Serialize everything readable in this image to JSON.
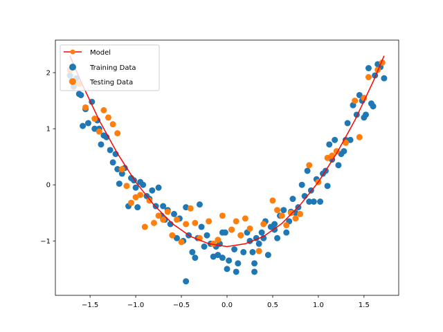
{
  "chart_data": {
    "type": "scatter",
    "xlim": [
      -1.88,
      1.88
    ],
    "ylim": [
      -1.97,
      2.58
    ],
    "x_ticks": [
      -1.5,
      -1.0,
      -0.5,
      0.0,
      0.5,
      1.0,
      1.5
    ],
    "x_tick_labels": [
      "−1.5",
      "−1.0",
      "−0.5",
      "0.0",
      "0.5",
      "1.0",
      "1.5"
    ],
    "y_ticks": [
      -1,
      0,
      1,
      2
    ],
    "y_tick_labels": [
      "−1",
      "0",
      "1",
      "2"
    ],
    "grid": false,
    "legend_position": "upper-left",
    "series": [
      {
        "name": "Model",
        "kind": "line",
        "color": "#ff0000",
        "formula": "y = 1.15 * x^2 - 1.1",
        "x": [
          -1.72,
          -1.6,
          -1.4,
          -1.2,
          -1.0,
          -0.8,
          -0.6,
          -0.4,
          -0.2,
          0.0,
          0.2,
          0.4,
          0.6,
          0.8,
          1.0,
          1.2,
          1.4,
          1.6,
          1.72
        ],
        "y": [
          2.3,
          1.84,
          1.15,
          0.56,
          0.05,
          -0.36,
          -0.69,
          -0.92,
          -1.05,
          -1.1,
          -1.05,
          -0.92,
          -0.69,
          -0.36,
          0.05,
          0.56,
          1.15,
          1.84,
          2.3
        ]
      },
      {
        "name": "Training Data",
        "kind": "scatter",
        "color": "#1f77b4",
        "x": [
          -1.72,
          -1.68,
          -1.65,
          -1.62,
          -1.58,
          -1.55,
          -1.52,
          -1.48,
          -1.45,
          -1.42,
          -1.38,
          -1.35,
          -1.32,
          -1.28,
          -1.25,
          -1.22,
          -1.18,
          -1.15,
          -1.12,
          -1.08,
          -1.05,
          -1.02,
          -0.98,
          -0.95,
          -0.92,
          -0.88,
          -0.85,
          -0.82,
          -0.78,
          -0.75,
          -0.72,
          -0.68,
          -0.65,
          -0.62,
          -0.58,
          -0.55,
          -0.52,
          -0.48,
          -0.45,
          -0.42,
          -0.38,
          -0.35,
          -0.32,
          -0.28,
          -0.25,
          -0.22,
          -0.18,
          -0.15,
          -0.12,
          -0.08,
          -0.05,
          -0.02,
          0.02,
          0.05,
          0.08,
          0.12,
          0.15,
          0.18,
          0.22,
          0.25,
          0.28,
          0.32,
          0.35,
          0.38,
          0.42,
          0.45,
          0.48,
          0.52,
          0.55,
          0.58,
          0.62,
          0.65,
          0.68,
          0.72,
          0.75,
          0.78,
          0.82,
          0.85,
          0.88,
          0.92,
          0.95,
          0.98,
          1.02,
          1.05,
          1.08,
          1.12,
          1.15,
          1.18,
          1.22,
          1.25,
          1.28,
          1.32,
          1.35,
          1.38,
          1.42,
          1.45,
          1.48,
          1.52,
          1.55,
          1.58,
          1.62,
          1.65,
          1.68,
          1.72,
          -1.6,
          -1.4,
          -1.2,
          -1.0,
          -0.7,
          -0.45,
          -0.3,
          -0.1,
          0.0,
          0.1,
          0.3,
          0.4,
          0.7,
          0.9,
          1.1,
          1.3,
          1.5,
          1.6
        ],
        "y": [
          1.95,
          1.75,
          1.9,
          1.62,
          1.05,
          1.35,
          1.1,
          1.48,
          1.0,
          1.15,
          0.72,
          0.88,
          0.85,
          0.62,
          0.4,
          0.55,
          0.02,
          0.2,
          0.3,
          -0.38,
          0.12,
          0.08,
          -0.4,
          0.05,
          0.0,
          -0.2,
          -0.25,
          -0.1,
          -0.38,
          -0.05,
          -0.55,
          -0.62,
          -0.45,
          -0.7,
          -0.52,
          -0.95,
          -0.6,
          -1.0,
          -0.4,
          -0.9,
          -1.2,
          -1.3,
          -0.95,
          -0.75,
          -1.1,
          -0.9,
          -1.05,
          -1.28,
          -1.1,
          -1.05,
          -1.3,
          -0.85,
          -1.35,
          -0.8,
          -1.15,
          -1.4,
          -0.9,
          -1.2,
          -0.85,
          -1.0,
          -1.2,
          -0.95,
          -1.05,
          -0.85,
          -0.65,
          -1.25,
          -0.75,
          -0.8,
          -0.95,
          -0.55,
          -0.45,
          -0.85,
          -0.65,
          -0.25,
          -0.5,
          -0.4,
          0.0,
          -0.2,
          0.25,
          -0.1,
          -0.3,
          0.1,
          -0.3,
          0.2,
          0.25,
          0.72,
          0.45,
          0.8,
          0.35,
          0.55,
          0.6,
          1.1,
          0.8,
          1.42,
          1.25,
          1.6,
          1.5,
          1.25,
          2.08,
          1.45,
          1.95,
          2.15,
          2.1,
          1.9,
          1.6,
          1.0,
          0.28,
          -0.05,
          -0.38,
          -1.72,
          -0.35,
          -1.25,
          -1.5,
          -1.55,
          -1.4,
          -0.95,
          -0.48,
          -0.3,
          -0.02,
          0.8,
          1.2,
          1.4
        ],
        "extra_points": [
          [
            -1.7,
            1.85
          ],
          [
            0.3,
            -1.55
          ],
          [
            0.52,
            -0.7
          ],
          [
            -0.05,
            -0.85
          ]
        ]
      },
      {
        "name": "Testing Data",
        "kind": "scatter",
        "color": "#ff7f0e",
        "x": [
          -1.72,
          -1.62,
          -1.55,
          -1.45,
          -1.4,
          -1.35,
          -1.3,
          -1.25,
          -1.2,
          -1.15,
          -1.1,
          -1.05,
          -1.0,
          -0.95,
          -0.9,
          -0.85,
          -0.8,
          -0.75,
          -0.7,
          -0.65,
          -0.6,
          -0.55,
          -0.5,
          -0.45,
          -0.4,
          -0.35,
          -0.3,
          -0.2,
          -0.15,
          -0.1,
          -0.05,
          0.05,
          0.1,
          0.15,
          0.2,
          0.25,
          0.35,
          0.4,
          0.5,
          0.55,
          0.6,
          0.65,
          0.7,
          0.75,
          0.8,
          0.9,
          1.0,
          1.1,
          1.15,
          1.2,
          1.3,
          1.4,
          1.45,
          1.5,
          1.55,
          1.65,
          1.7
        ],
        "y": [
          2.05,
          1.8,
          1.38,
          1.18,
          0.95,
          1.33,
          1.2,
          1.08,
          0.92,
          0.28,
          -0.02,
          -0.32,
          -0.22,
          -0.18,
          -0.75,
          -0.28,
          -0.68,
          -0.55,
          -0.62,
          -0.48,
          -0.9,
          -0.62,
          -1.02,
          -0.7,
          -0.42,
          -0.68,
          -0.95,
          -0.65,
          -1.05,
          -0.98,
          -0.55,
          -0.8,
          -0.65,
          -0.9,
          -0.6,
          -0.78,
          -1.18,
          -0.7,
          -0.28,
          -0.45,
          -0.55,
          -0.72,
          -0.5,
          -0.6,
          -0.52,
          0.35,
          0.05,
          0.48,
          0.52,
          0.6,
          0.75,
          1.5,
          0.85,
          1.55,
          1.92,
          2.05,
          2.18
        ]
      }
    ],
    "legend": {
      "model": "Model",
      "training": "Training Data",
      "testing": "Testing Data"
    }
  }
}
